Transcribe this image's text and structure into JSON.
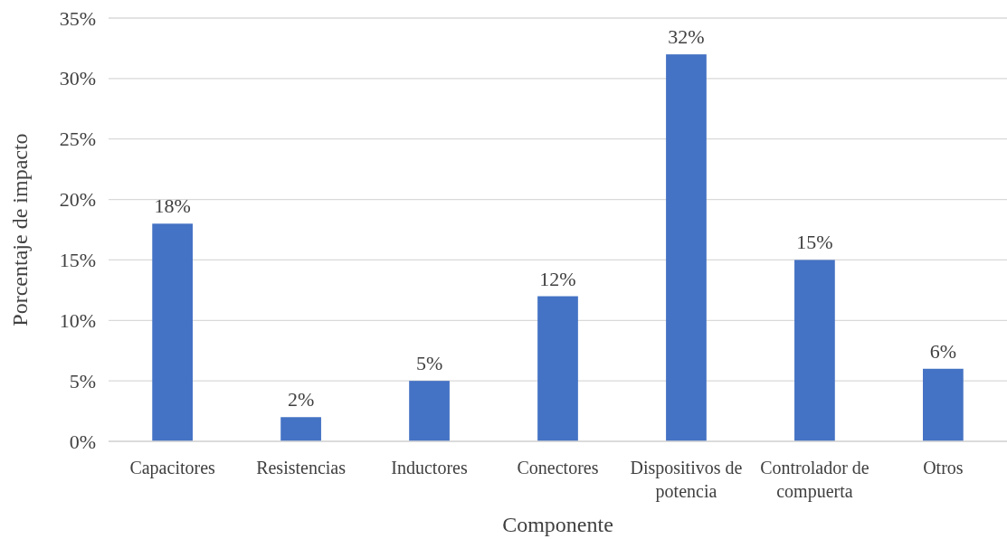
{
  "chart_data": {
    "type": "bar",
    "xlabel": "Componente",
    "ylabel": "Porcentaje de impacto",
    "categories": [
      "Capacitores",
      "Resistencias",
      "Inductores",
      "Conectores",
      "Dispositivos de potencia",
      "Controlador de compuerta",
      "Otros"
    ],
    "values": [
      18,
      2,
      5,
      12,
      32,
      15,
      6
    ],
    "value_labels": [
      "18%",
      "2%",
      "5%",
      "12%",
      "32%",
      "15%",
      "6%"
    ],
    "color": "#4472c4",
    "ylim": [
      0,
      35
    ],
    "yticks": [
      {
        "value": 0,
        "label": "0%"
      },
      {
        "value": 5,
        "label": "5%"
      },
      {
        "value": 10,
        "label": "10%"
      },
      {
        "value": 15,
        "label": "15%"
      },
      {
        "value": 20,
        "label": "20%"
      },
      {
        "value": 25,
        "label": "25%"
      },
      {
        "value": 30,
        "label": "30%"
      },
      {
        "value": 35,
        "label": "35%"
      }
    ],
    "grid": "y"
  }
}
